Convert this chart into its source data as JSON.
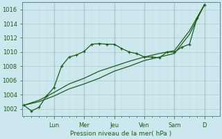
{
  "bg_color": "#cce8ee",
  "grid_color_major": "#b0c8cc",
  "grid_color_minor": "#c8dde0",
  "line_color": "#1a5c1a",
  "xlabel": "Pression niveau de la mer( hPa )",
  "ylim": [
    1001.0,
    1017.0
  ],
  "yticks": [
    1002,
    1004,
    1006,
    1008,
    1010,
    1012,
    1014,
    1016
  ],
  "x_day_labels": [
    "Lun",
    "Mer",
    "Jeu",
    "Ven",
    "Sam",
    "D"
  ],
  "x_day_positions": [
    2,
    4,
    6,
    8,
    10,
    12
  ],
  "xlim": [
    -0.1,
    13.0
  ],
  "line1_x": [
    0,
    0.5,
    1.0,
    1.5,
    2.0,
    2.5,
    3.0,
    3.5,
    4.0,
    4.5,
    5.0,
    5.5,
    6.0,
    6.5,
    7.0,
    7.5,
    8.0,
    8.5,
    9.0,
    9.5,
    10.0,
    10.5,
    11.0,
    11.5,
    12.0
  ],
  "line1_y": [
    1002.5,
    1001.7,
    1002.2,
    1003.8,
    1005.0,
    1008.0,
    1009.3,
    1009.6,
    1010.1,
    1011.1,
    1011.2,
    1011.1,
    1011.1,
    1010.5,
    1010.0,
    1009.8,
    1009.3,
    1009.3,
    1009.2,
    1010.0,
    1010.0,
    1010.7,
    1011.1,
    1014.8,
    1016.7
  ],
  "line2_x": [
    0,
    1,
    2,
    3,
    4,
    5,
    6,
    7,
    8,
    9,
    10,
    11,
    12
  ],
  "line2_y": [
    1002.5,
    1003.2,
    1004.3,
    1005.5,
    1006.3,
    1007.3,
    1008.0,
    1008.7,
    1009.3,
    1009.8,
    1010.2,
    1013.0,
    1016.7
  ],
  "line3_x": [
    0,
    1,
    2,
    3,
    4,
    5,
    6,
    7,
    8,
    9,
    10,
    11,
    12
  ],
  "line3_y": [
    1002.5,
    1003.0,
    1003.8,
    1004.8,
    1005.5,
    1006.3,
    1007.3,
    1008.0,
    1008.8,
    1009.3,
    1009.8,
    1012.5,
    1016.7
  ]
}
